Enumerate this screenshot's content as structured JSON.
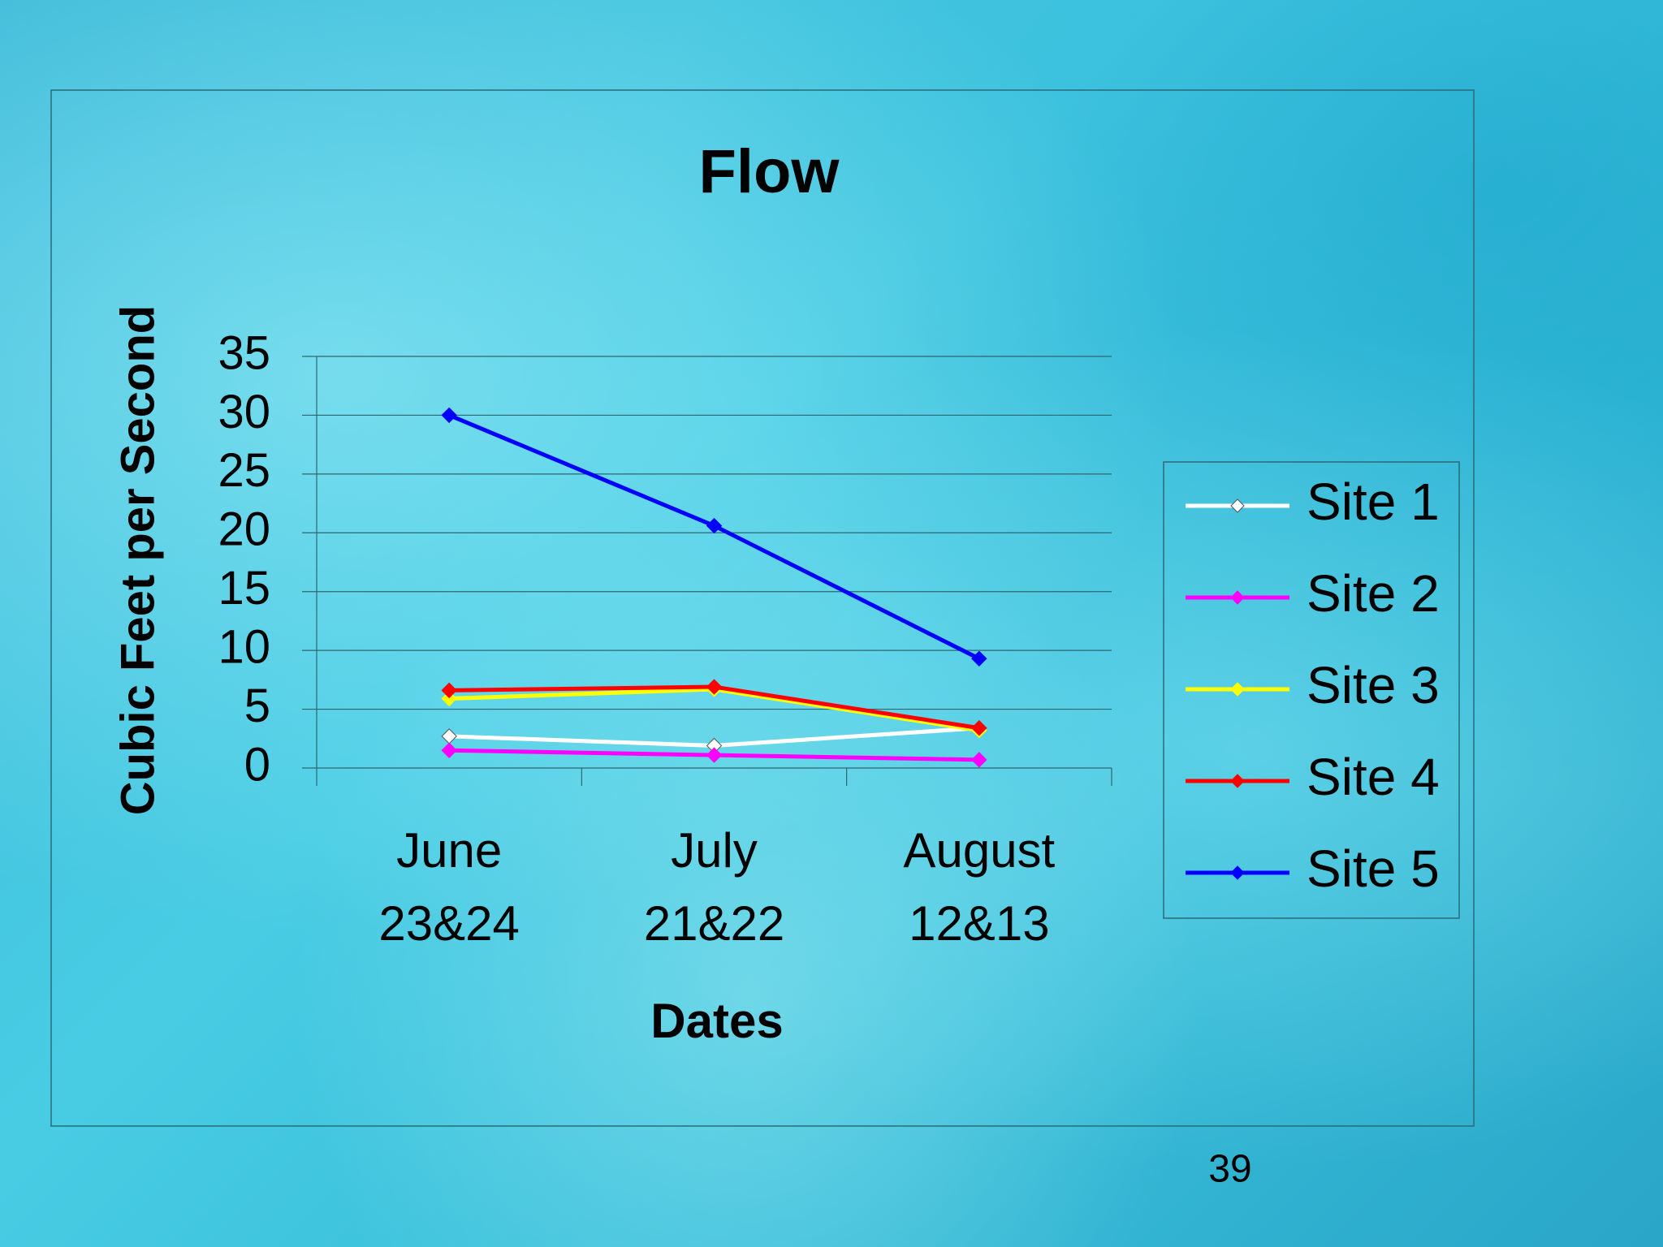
{
  "chart_data": {
    "type": "line",
    "title": "Flow",
    "x_label": "Dates",
    "y_label": "Cubic Feet per Second",
    "categories": [
      "June 23&24",
      "July 21&22",
      "August 12&13"
    ],
    "series": [
      {
        "name": "Site 1",
        "color": "#ffffff",
        "values": [
          2.7,
          1.9,
          3.4
        ]
      },
      {
        "name": "Site 2",
        "color": "#ff00ff",
        "values": [
          1.5,
          1.1,
          0.7
        ]
      },
      {
        "name": "Site 3",
        "color": "#ffff00",
        "values": [
          5.9,
          6.7,
          3.2
        ]
      },
      {
        "name": "Site 4",
        "color": "#ff0000",
        "values": [
          6.6,
          6.9,
          3.4
        ]
      },
      {
        "name": "Site 5",
        "color": "#0000ff",
        "values": [
          30,
          20.6,
          9.3
        ]
      }
    ],
    "ylim": [
      0,
      35
    ],
    "yticks": [
      0,
      5,
      10,
      15,
      20,
      25,
      30,
      35
    ],
    "grid": true,
    "legend": "right"
  },
  "page_number": 39
}
